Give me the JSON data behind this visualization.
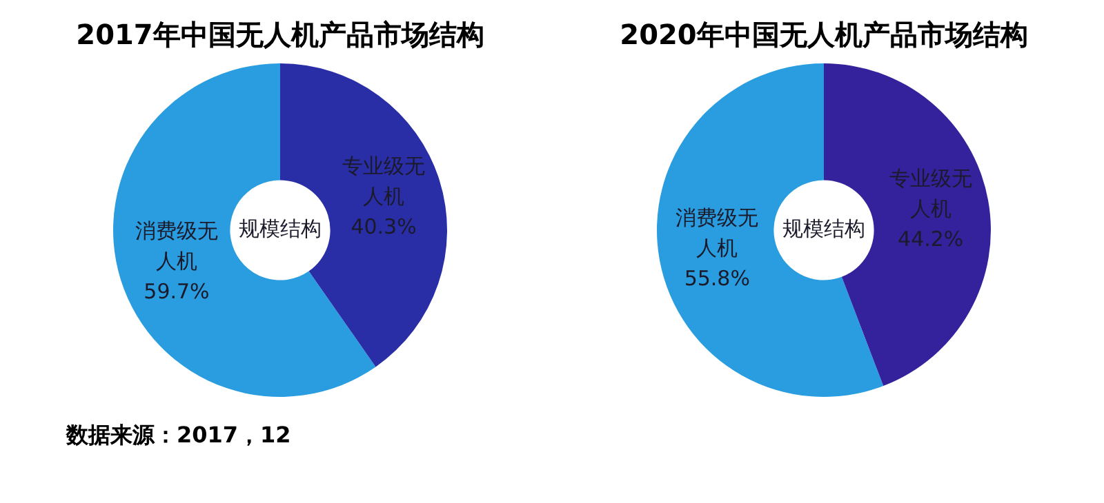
{
  "chart_data": [
    {
      "type": "donut",
      "title": "2017年中国无人机产品市场结构",
      "categories": [
        "消费级无人机",
        "专业级无人机"
      ],
      "values": [
        59.7,
        40.3
      ],
      "colors": [
        "#2a9de0",
        "#2a2ea6"
      ],
      "value_labels": [
        "59.7%",
        "40.3%"
      ],
      "annotations": [
        "规模结构",
        "数据来源：2017，12"
      ]
    },
    {
      "type": "donut",
      "title": "2020年中国无人机产品市场结构",
      "categories": [
        "消费级无人机",
        "专业级无人机"
      ],
      "values": [
        55.8,
        44.2
      ],
      "colors": [
        "#2a9de0",
        "#33229c"
      ],
      "value_labels": [
        "55.8%",
        "44.2%"
      ],
      "annotations": [
        "规模结构"
      ]
    }
  ]
}
